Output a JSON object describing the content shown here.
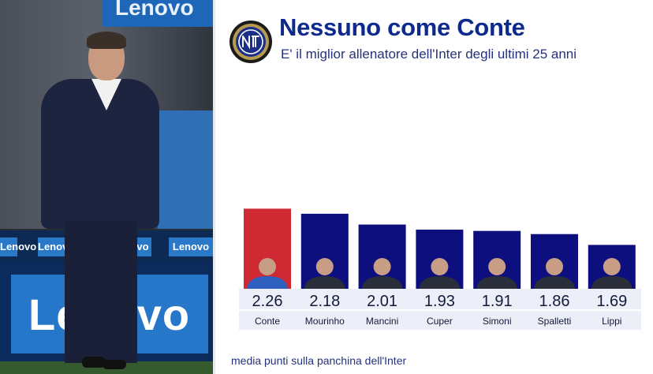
{
  "header": {
    "title": "Nessuno come Conte",
    "subtitle": "E' il miglior allenatore dell'Inter degli ultimi 25 anni"
  },
  "photo": {
    "banner_top": "Lenovo",
    "board_chips": [
      "Lenovo",
      "Lenovo",
      "ovo",
      "Lenovo"
    ],
    "big_ad": "Lenovo"
  },
  "colors": {
    "highlight": "#cf2a33",
    "bar": "#0e0f7e",
    "label_band": "#eceff7",
    "title": "#0e2a8c"
  },
  "icons": {
    "logo": "inter-crest-icon"
  },
  "chart_data": {
    "type": "bar",
    "title": "Nessuno come Conte",
    "subtitle": "E' il miglior allenatore dell'Inter degli ultimi 25 anni",
    "categories": [
      "Conte",
      "Mourinho",
      "Mancini",
      "Cuper",
      "Simoni",
      "Spalletti",
      "Lippi"
    ],
    "values": [
      2.26,
      2.18,
      2.01,
      1.93,
      1.91,
      1.86,
      1.69
    ],
    "value_labels": [
      "2.26",
      "2.18",
      "2.01",
      "1.93",
      "1.91",
      "1.86",
      "1.69"
    ],
    "highlight_index": 0,
    "caption": "media punti sulla panchina dell'Inter",
    "grid": false,
    "legend": "none"
  }
}
